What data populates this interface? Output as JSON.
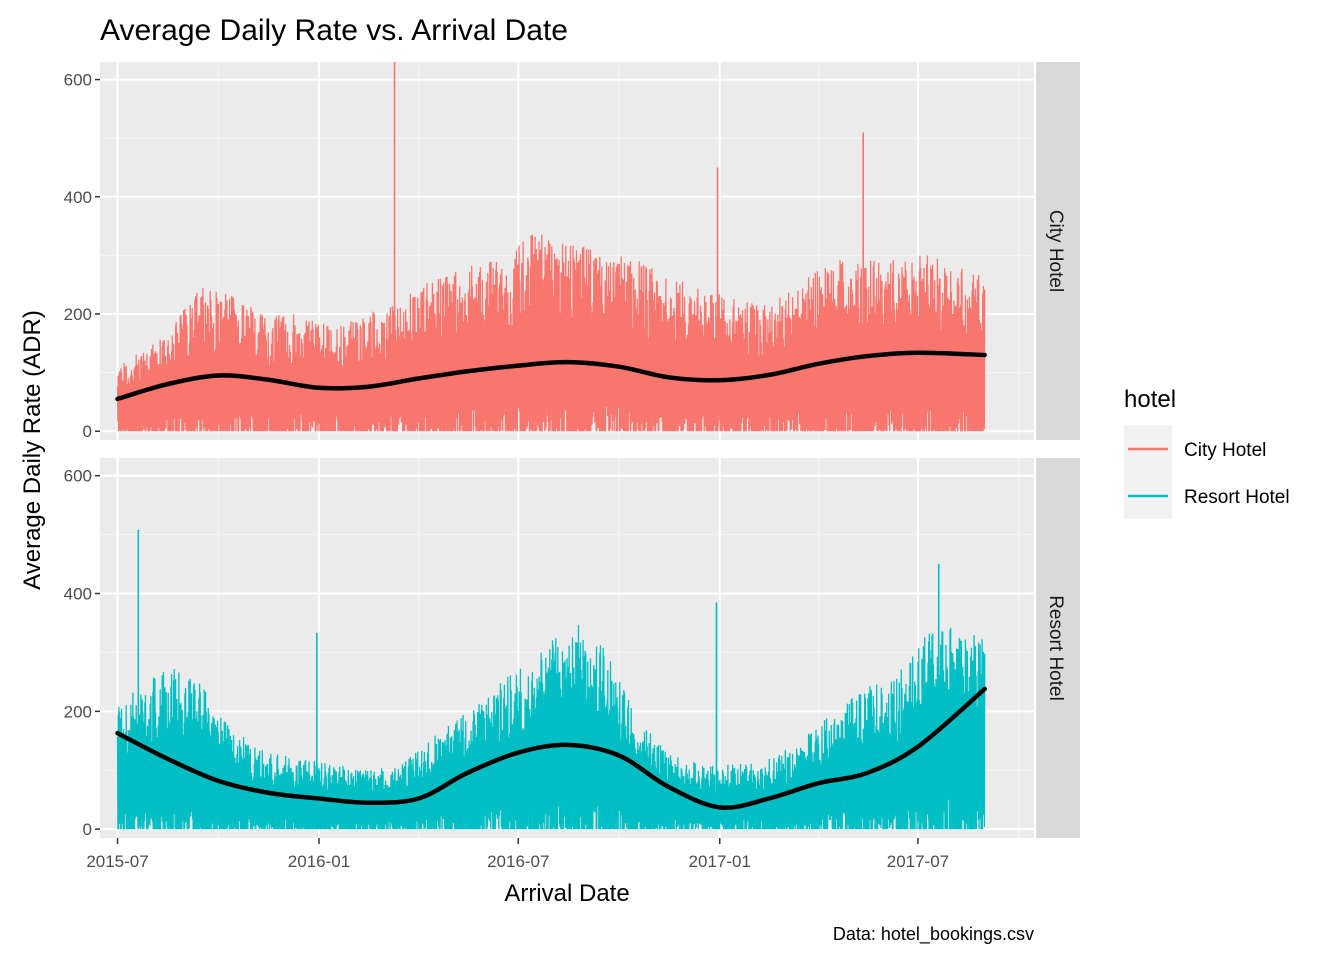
{
  "chart_data": {
    "type": "line",
    "title": "Average Daily Rate vs. Arrival Date",
    "xlabel": "Arrival Date",
    "ylabel": "Average Daily Rate (ADR)",
    "caption": "Data: hotel_bookings.csv",
    "x_ticks": [
      "2015-07",
      "2016-01",
      "2016-07",
      "2017-01",
      "2017-07"
    ],
    "x_range": [
      "2015-06-15",
      "2017-10-15"
    ],
    "ylim": [
      -15,
      630
    ],
    "y_ticks": [
      0,
      200,
      400,
      600
    ],
    "grid": true,
    "legend": {
      "title": "hotel",
      "position": "right",
      "entries": [
        "City Hotel",
        "Resort Hotel"
      ]
    },
    "facets": [
      {
        "name": "City Hotel",
        "color": "#F8766D",
        "raw_envelope": {
          "x": [
            "2015-07-01",
            "2015-08-15",
            "2015-09-15",
            "2015-10-15",
            "2015-11-15",
            "2015-12-15",
            "2016-01-15",
            "2016-02-15",
            "2016-03-15",
            "2016-04-15",
            "2016-05-15",
            "2016-06-15",
            "2016-07-15",
            "2016-08-15",
            "2016-09-15",
            "2016-10-15",
            "2016-11-15",
            "2016-12-15",
            "2017-01-15",
            "2017-02-15",
            "2017-03-15",
            "2017-04-15",
            "2017-05-15",
            "2017-06-15",
            "2017-07-15",
            "2017-08-31"
          ],
          "high": [
            110,
            165,
            250,
            230,
            200,
            200,
            180,
            200,
            230,
            260,
            290,
            290,
            340,
            320,
            310,
            300,
            260,
            250,
            230,
            220,
            250,
            300,
            290,
            300,
            300,
            270
          ]
        },
        "spikes": [
          {
            "x": "2016-03-10",
            "y": 630
          },
          {
            "x": "2016-12-30",
            "y": 450
          },
          {
            "x": "2017-05-12",
            "y": 510
          }
        ],
        "smooth": {
          "x": [
            "2015-07-01",
            "2015-08-15",
            "2015-10-01",
            "2015-11-15",
            "2016-01-01",
            "2016-02-15",
            "2016-04-01",
            "2016-05-15",
            "2016-07-01",
            "2016-08-15",
            "2016-10-01",
            "2016-11-15",
            "2017-01-01",
            "2017-02-15",
            "2017-04-01",
            "2017-05-15",
            "2017-07-01",
            "2017-08-31"
          ],
          "y": [
            55,
            80,
            95,
            88,
            74,
            76,
            90,
            102,
            112,
            118,
            110,
            92,
            87,
            96,
            115,
            128,
            134,
            130
          ]
        }
      },
      {
        "name": "Resort Hotel",
        "color": "#00BFC4",
        "raw_envelope": {
          "x": [
            "2015-07-01",
            "2015-08-15",
            "2015-09-15",
            "2015-10-15",
            "2015-11-15",
            "2015-12-15",
            "2016-01-15",
            "2016-02-15",
            "2016-03-15",
            "2016-04-15",
            "2016-05-15",
            "2016-06-15",
            "2016-07-15",
            "2016-08-15",
            "2016-09-15",
            "2016-10-15",
            "2016-11-15",
            "2016-12-15",
            "2017-01-15",
            "2017-02-15",
            "2017-03-15",
            "2017-04-15",
            "2017-05-15",
            "2017-06-15",
            "2017-07-15",
            "2017-08-31"
          ],
          "high": [
            210,
            280,
            250,
            170,
            130,
            120,
            110,
            100,
            110,
            160,
            200,
            250,
            300,
            360,
            320,
            200,
            130,
            110,
            110,
            120,
            150,
            200,
            240,
            270,
            350,
            330
          ]
        },
        "spikes": [
          {
            "x": "2015-07-20",
            "y": 508
          },
          {
            "x": "2015-12-30",
            "y": 333
          },
          {
            "x": "2016-12-29",
            "y": 385
          },
          {
            "x": "2017-07-20",
            "y": 450
          }
        ],
        "smooth": {
          "x": [
            "2015-07-01",
            "2015-08-15",
            "2015-10-01",
            "2015-11-15",
            "2016-01-01",
            "2016-02-15",
            "2016-04-01",
            "2016-05-15",
            "2016-07-01",
            "2016-08-15",
            "2016-10-01",
            "2016-11-15",
            "2017-01-01",
            "2017-02-15",
            "2017-04-01",
            "2017-05-15",
            "2017-07-01",
            "2017-08-31"
          ],
          "y": [
            163,
            120,
            82,
            62,
            52,
            45,
            52,
            95,
            130,
            143,
            125,
            72,
            37,
            52,
            78,
            95,
            140,
            238
          ]
        }
      }
    ]
  }
}
